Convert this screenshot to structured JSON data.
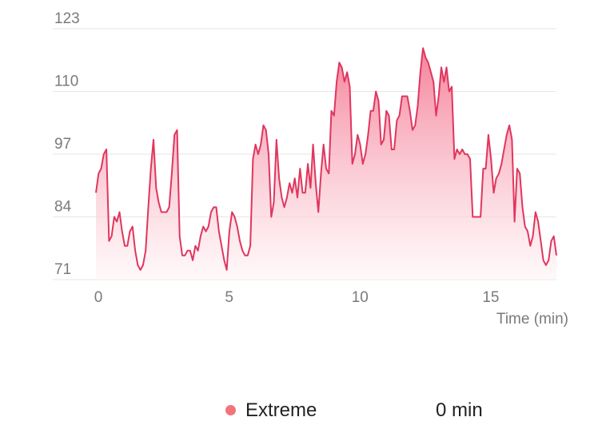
{
  "chart_data": {
    "type": "area",
    "xlabel": "Time (min)",
    "ylabel": "",
    "xlim": [
      0,
      17.6
    ],
    "ylim": [
      71,
      123
    ],
    "xticks": [
      0,
      5,
      10,
      15
    ],
    "yticks": [
      71,
      84,
      97,
      110,
      123
    ],
    "grid": true,
    "colors": {
      "line": "#e0365e",
      "fill_top": "#f47c95",
      "fill_bottom": "#fff4f6",
      "grid": "#e6e6e6"
    },
    "series": [
      {
        "x": [
          0.0,
          0.1,
          0.2,
          0.3,
          0.4,
          0.5,
          0.6,
          0.7,
          0.8,
          0.9,
          1.0,
          1.1,
          1.2,
          1.3,
          1.4,
          1.5,
          1.6,
          1.7,
          1.8,
          1.9,
          2.0,
          2.1,
          2.2,
          2.3,
          2.4,
          2.5,
          2.6,
          2.7,
          2.8,
          2.9,
          3.0,
          3.1,
          3.2,
          3.3,
          3.4,
          3.5,
          3.6,
          3.7,
          3.8,
          3.9,
          4.0,
          4.1,
          4.2,
          4.3,
          4.4,
          4.5,
          4.6,
          4.7,
          4.8,
          4.9,
          5.0,
          5.1,
          5.2,
          5.3,
          5.4,
          5.5,
          5.6,
          5.7,
          5.8,
          5.9,
          6.0,
          6.1,
          6.2,
          6.3,
          6.4,
          6.5,
          6.6,
          6.7,
          6.8,
          6.9,
          7.0,
          7.1,
          7.2,
          7.3,
          7.4,
          7.5,
          7.6,
          7.7,
          7.8,
          7.9,
          8.0,
          8.1,
          8.2,
          8.3,
          8.4,
          8.5,
          8.6,
          8.7,
          8.8,
          8.9,
          9.0,
          9.1,
          9.2,
          9.3,
          9.4,
          9.5,
          9.6,
          9.7,
          9.8,
          9.9,
          10.0,
          10.1,
          10.2,
          10.3,
          10.4,
          10.5,
          10.6,
          10.7,
          10.8,
          10.9,
          11.0,
          11.1,
          11.2,
          11.3,
          11.4,
          11.5,
          11.6,
          11.7,
          11.8,
          11.9,
          12.0,
          12.1,
          12.2,
          12.3,
          12.4,
          12.5,
          12.6,
          12.7,
          12.8,
          12.9,
          13.0,
          13.1,
          13.2,
          13.3,
          13.4,
          13.5,
          13.6,
          13.7,
          13.8,
          13.9,
          14.0,
          14.1,
          14.2,
          14.3,
          14.4,
          14.5,
          14.6,
          14.7,
          14.8,
          14.9,
          15.0,
          15.1,
          15.2,
          15.3,
          15.4,
          15.5,
          15.6,
          15.7,
          15.8,
          15.9,
          16.0,
          16.1,
          16.2,
          16.3,
          16.4,
          16.5,
          16.6,
          16.7,
          16.8,
          16.9,
          17.0,
          17.1,
          17.2,
          17.3,
          17.4,
          17.5,
          17.6
        ],
        "values": [
          89,
          93,
          94,
          97,
          98,
          79,
          80,
          84,
          83,
          85,
          81,
          78,
          78,
          81,
          82,
          77,
          74,
          73,
          74,
          77,
          86,
          94,
          100,
          90,
          87,
          85,
          85,
          85,
          86,
          93,
          101,
          102,
          80,
          76,
          76,
          77,
          77,
          75,
          78,
          77,
          80,
          82,
          81,
          82,
          85,
          86,
          86,
          81,
          78,
          75,
          73,
          81,
          85,
          84,
          82,
          79,
          77,
          76,
          76,
          78,
          96,
          99,
          97,
          99,
          103,
          102,
          97,
          84,
          87,
          100,
          92,
          88,
          86,
          88,
          91,
          89,
          92,
          88,
          94,
          89,
          89,
          95,
          90,
          99,
          91,
          85,
          93,
          99,
          94,
          93,
          106,
          105,
          112,
          116,
          115,
          112,
          114,
          111,
          95,
          97,
          101,
          99,
          95,
          97,
          101,
          106,
          106,
          110,
          108,
          99,
          100,
          106,
          105,
          98,
          98,
          104,
          105,
          109,
          109,
          109,
          106,
          102,
          103,
          107,
          114,
          119,
          117,
          116,
          114,
          112,
          105,
          109,
          115,
          112,
          115,
          110,
          111,
          96,
          98,
          97,
          98,
          97,
          97,
          96,
          84,
          84,
          84,
          84,
          94,
          94,
          101,
          96,
          89,
          92,
          93,
          95,
          98,
          101,
          103,
          100,
          83,
          94,
          93,
          86,
          82,
          81,
          78,
          80,
          85,
          83,
          79,
          75,
          74,
          75,
          79,
          80,
          76
        ]
      }
    ]
  },
  "legend": {
    "items": [
      {
        "label": "Extreme",
        "value": "0 min",
        "color": "#f07478"
      }
    ]
  }
}
